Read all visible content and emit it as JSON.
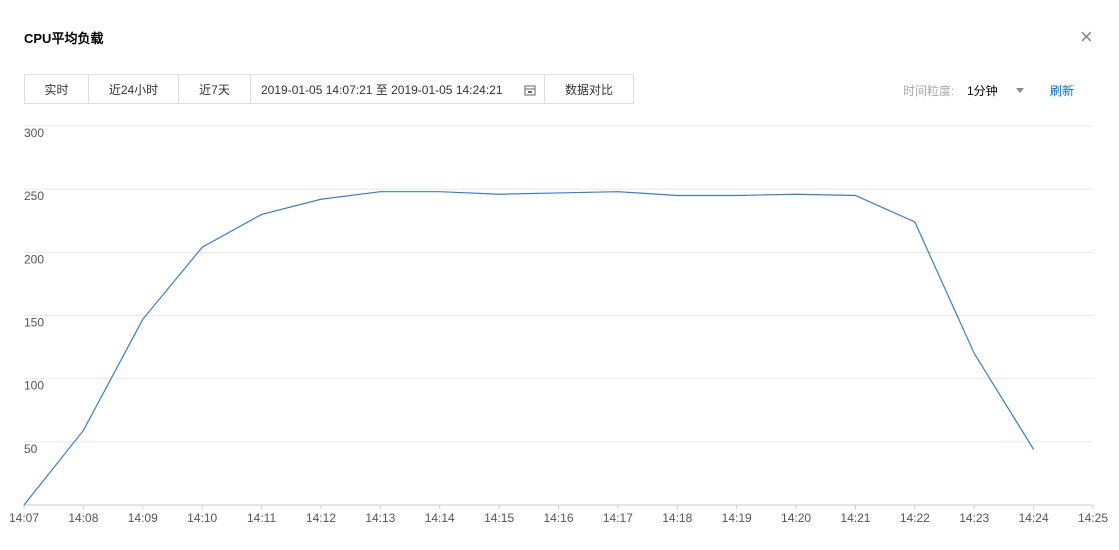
{
  "header": {
    "title": "CPU平均负载"
  },
  "toolbar": {
    "tabs": [
      "实时",
      "近24小时",
      "近7天"
    ],
    "range": "2019-01-05 14:07:21 至 2019-01-05 14:24:21",
    "compare": "数据对比",
    "granularity_label": "时间粒度:",
    "granularity": "1分钟",
    "refresh": "刷新"
  },
  "chart_data": {
    "type": "line",
    "categories": [
      "14:07",
      "14:08",
      "14:09",
      "14:10",
      "14:11",
      "14:12",
      "14:13",
      "14:14",
      "14:15",
      "14:16",
      "14:17",
      "14:18",
      "14:19",
      "14:20",
      "14:21",
      "14:22",
      "14:23",
      "14:24",
      "14:25"
    ],
    "values": [
      0,
      59,
      147,
      204,
      230,
      242,
      248,
      248,
      246,
      247,
      248,
      245,
      245,
      246,
      245,
      224,
      120,
      44,
      null
    ],
    "color": "#3a7bd5",
    "ylim": [
      0,
      300
    ],
    "yticks": [
      50,
      100,
      150,
      200,
      250,
      300
    ],
    "grid": true
  }
}
